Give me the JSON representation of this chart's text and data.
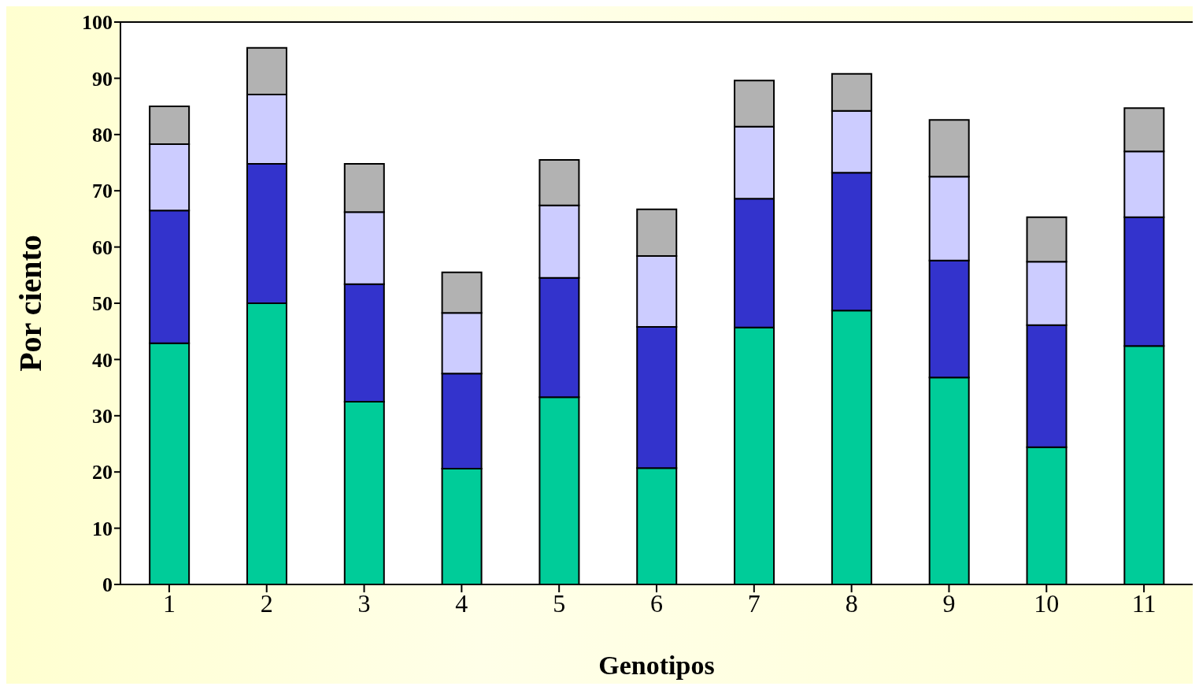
{
  "chart_data": {
    "type": "bar",
    "stacked": true,
    "xlabel": "Genotipos",
    "ylabel": "Por ciento",
    "categories": [
      "1",
      "2",
      "3",
      "4",
      "5",
      "6",
      "7",
      "8",
      "9",
      "10",
      "11"
    ],
    "series": [
      {
        "color": "#00cc99",
        "values": [
          42.9,
          50.0,
          32.5,
          20.6,
          33.3,
          20.7,
          45.7,
          48.7,
          36.8,
          24.4,
          42.4
        ]
      },
      {
        "color": "#3333cc",
        "values": [
          23.6,
          24.8,
          20.9,
          16.9,
          21.2,
          25.1,
          22.9,
          24.5,
          20.8,
          21.7,
          22.9
        ]
      },
      {
        "color": "#ccccff",
        "values": [
          11.8,
          12.3,
          12.8,
          10.8,
          12.9,
          12.6,
          12.8,
          11.0,
          14.9,
          11.3,
          11.7
        ]
      },
      {
        "color": "#b2b2b2",
        "values": [
          6.7,
          8.3,
          8.6,
          7.2,
          8.1,
          8.3,
          8.2,
          6.6,
          10.1,
          7.9,
          7.7
        ]
      }
    ],
    "ylim": [
      0,
      100
    ],
    "yticks": [
      0,
      10,
      20,
      30,
      40,
      50,
      60,
      70,
      80,
      90,
      100
    ]
  }
}
